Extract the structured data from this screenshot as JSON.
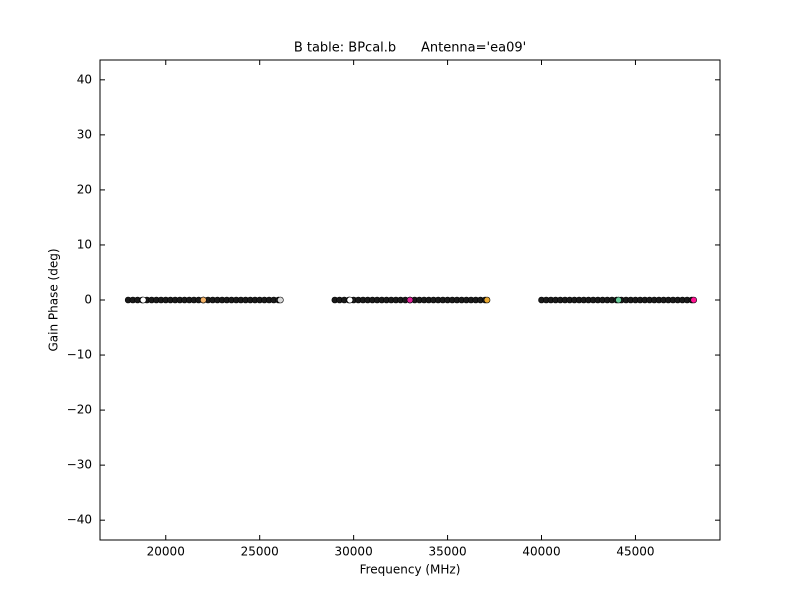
{
  "chart_data": {
    "type": "scatter",
    "title": "B table: BPcal.b      Antenna='ea09'",
    "xlabel": "Frequency (MHz)",
    "ylabel": "Gain Phase (deg)",
    "xlim": [
      16500,
      49500
    ],
    "ylim": [
      -43.6,
      43.6
    ],
    "xticks": [
      20000,
      25000,
      30000,
      35000,
      40000,
      45000
    ],
    "yticks": [
      {
        "value": -40,
        "label": "−40"
      },
      {
        "value": -30,
        "label": "−30"
      },
      {
        "value": -20,
        "label": "−20"
      },
      {
        "value": -10,
        "label": "−10"
      },
      0,
      10,
      20,
      30,
      40
    ],
    "series": [
      {
        "color": "#1a1a1a",
        "x": [
          18000,
          18250,
          18500,
          18750,
          19000,
          19250,
          19500,
          19750,
          20000,
          20250,
          20500,
          20750,
          21000,
          21250,
          21500,
          21750,
          22000,
          22250,
          22500,
          22750,
          23000,
          23250,
          23500,
          23750,
          24000,
          24250,
          24500,
          24750,
          25000,
          25250,
          25500,
          25750,
          26000,
          29000,
          29250,
          29500,
          29750,
          30000,
          30250,
          30500,
          30750,
          31000,
          31250,
          31500,
          31750,
          32000,
          32250,
          32500,
          32750,
          33000,
          33250,
          33500,
          33750,
          34000,
          34250,
          34500,
          34750,
          35000,
          35250,
          35500,
          35750,
          36000,
          36250,
          36500,
          36750,
          37000,
          40000,
          40250,
          40500,
          40750,
          41000,
          41250,
          41500,
          41750,
          42000,
          42250,
          42500,
          42750,
          43000,
          43250,
          43500,
          43750,
          44000,
          44250,
          44500,
          44750,
          45000,
          45250,
          45500,
          45750,
          46000,
          46250,
          46500,
          46750,
          47000,
          47250,
          47500,
          47750,
          48000
        ],
        "values": [
          0,
          0,
          0,
          0,
          0,
          0,
          0,
          0,
          0,
          0,
          0,
          0,
          0,
          0,
          0,
          0,
          0,
          0,
          0,
          0,
          0,
          0,
          0,
          0,
          0,
          0,
          0,
          0,
          0,
          0,
          0,
          0,
          0,
          0,
          0,
          0,
          0,
          0,
          0,
          0,
          0,
          0,
          0,
          0,
          0,
          0,
          0,
          0,
          0,
          0,
          0,
          0,
          0,
          0,
          0,
          0,
          0,
          0,
          0,
          0,
          0,
          0,
          0,
          0,
          0,
          0,
          0,
          0,
          0,
          0,
          0,
          0,
          0,
          0,
          0,
          0,
          0,
          0,
          0,
          0,
          0,
          0,
          0,
          0,
          0,
          0,
          0,
          0,
          0,
          0,
          0,
          0,
          0,
          0,
          0,
          0,
          0,
          0,
          0
        ]
      },
      {
        "color": "#ffffff",
        "x": [
          18800,
          29800
        ],
        "values": [
          0,
          0
        ]
      },
      {
        "color": "#f4b46a",
        "x": [
          22000
        ],
        "values": [
          0
        ]
      },
      {
        "color": "#d8d8d8",
        "x": [
          26100
        ],
        "values": [
          0
        ]
      },
      {
        "color": "#e0209a",
        "x": [
          33000
        ],
        "values": [
          0
        ]
      },
      {
        "color": "#e8a830",
        "x": [
          37100
        ],
        "values": [
          0
        ]
      },
      {
        "color": "#66cc99",
        "x": [
          44100
        ],
        "values": [
          0
        ]
      },
      {
        "color": "#ff1493",
        "x": [
          48100
        ],
        "values": [
          0
        ]
      }
    ]
  }
}
